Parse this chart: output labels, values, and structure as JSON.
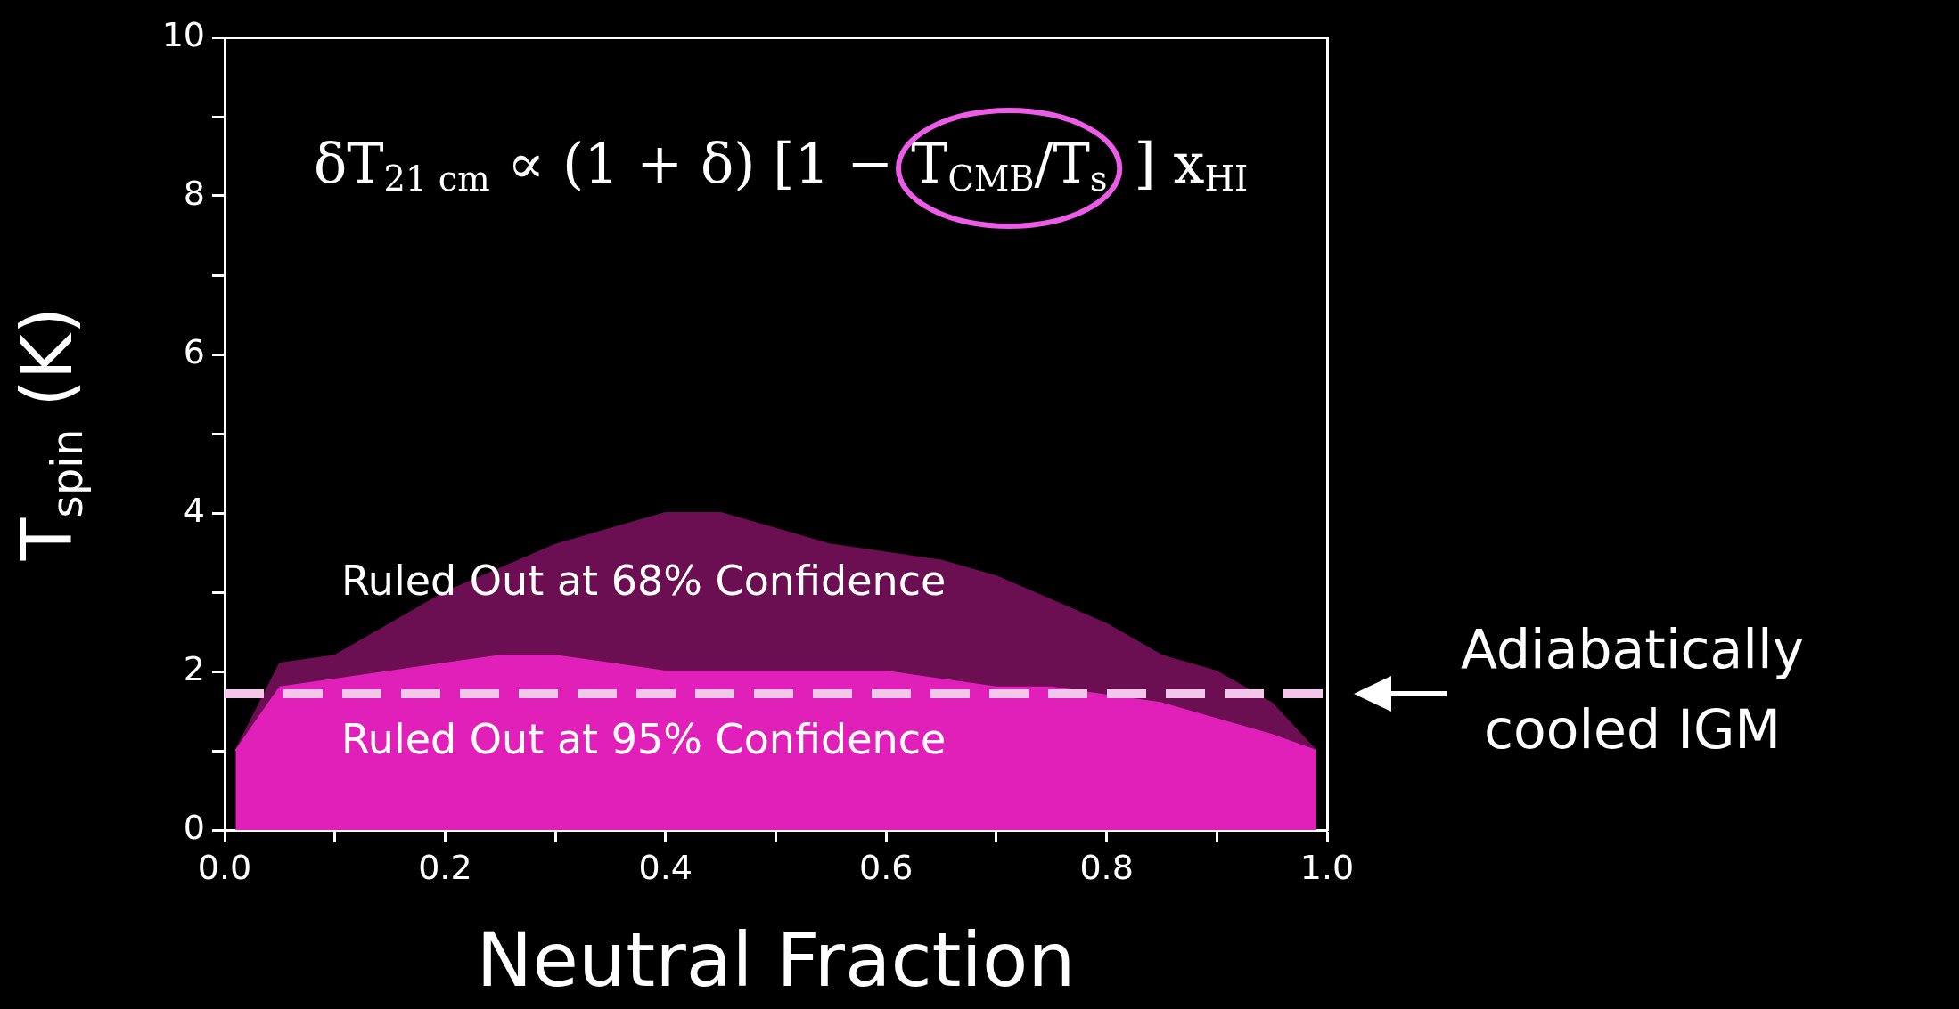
{
  "chart_data": {
    "type": "area",
    "xlabel": "Neutral Fraction",
    "ylabel": "T$_{spin}$ (K)",
    "x": [
      0.01,
      0.05,
      0.1,
      0.15,
      0.2,
      0.25,
      0.3,
      0.35,
      0.4,
      0.45,
      0.5,
      0.55,
      0.6,
      0.65,
      0.7,
      0.75,
      0.8,
      0.85,
      0.9,
      0.95,
      0.99
    ],
    "series": [
      {
        "name": "Ruled Out at 68% Confidence",
        "color": "#6b0f52",
        "values": [
          1.0,
          2.1,
          2.2,
          2.6,
          3.0,
          3.3,
          3.6,
          3.8,
          4.0,
          4.0,
          3.8,
          3.6,
          3.5,
          3.4,
          3.2,
          2.9,
          2.6,
          2.2,
          2.0,
          1.6,
          1.0
        ]
      },
      {
        "name": "Ruled Out at 95% Confidence",
        "color": "#e020b8",
        "values": [
          1.0,
          1.8,
          1.9,
          2.0,
          2.1,
          2.2,
          2.2,
          2.1,
          2.0,
          2.0,
          2.0,
          2.0,
          2.0,
          1.9,
          1.8,
          1.8,
          1.7,
          1.6,
          1.4,
          1.2,
          1.0
        ]
      }
    ],
    "xlim": [
      0,
      1
    ],
    "ylim": [
      0,
      10
    ],
    "xticks": [
      {
        "value": 0,
        "label": "0.0"
      },
      {
        "value": 0.1,
        "label": null
      },
      {
        "value": 0.2,
        "label": "0.2"
      },
      {
        "value": 0.3,
        "label": null
      },
      {
        "value": 0.4,
        "label": "0.4"
      },
      {
        "value": 0.5,
        "label": null
      },
      {
        "value": 0.6,
        "label": "0.6"
      },
      {
        "value": 0.7,
        "label": null
      },
      {
        "value": 0.8,
        "label": "0.8"
      },
      {
        "value": 0.9,
        "label": null
      },
      {
        "value": 1,
        "label": "1.0"
      }
    ],
    "yticks": [
      0,
      {
        "value": 1,
        "label": null
      },
      2,
      {
        "value": 3,
        "label": null
      },
      4,
      {
        "value": 5,
        "label": null
      },
      6,
      {
        "value": 7,
        "label": null
      },
      8,
      {
        "value": 9,
        "label": null
      },
      10
    ],
    "ref_lines": [
      {
        "axis": "y",
        "value": 1.72,
        "label": "Adiabatically cooled IGM",
        "color": "#f4c6ea",
        "line_style": "dashed"
      }
    ],
    "annotations": [
      "δT$_{21 cm}$ ∝ (1 + δ) [1 − T$_{CMB}$/T$_{s}$] x$_{HI}$"
    ],
    "grid": false,
    "legend": false
  }
}
